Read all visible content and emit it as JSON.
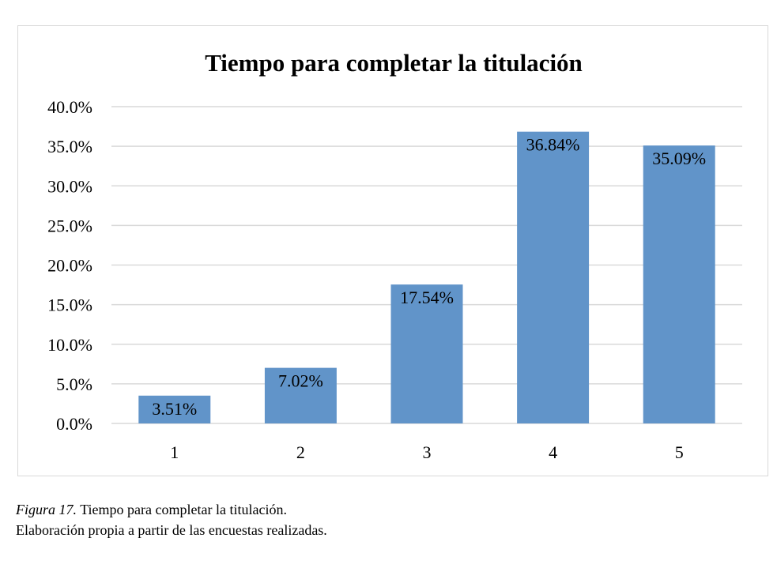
{
  "chart_data": {
    "type": "bar",
    "title": "Tiempo para completar la titulación",
    "xlabel": "",
    "ylabel": "",
    "categories": [
      "1",
      "2",
      "3",
      "4",
      "5"
    ],
    "values": [
      3.51,
      7.02,
      17.54,
      36.84,
      35.09
    ],
    "value_labels": [
      "3.51%",
      "7.02%",
      "17.54%",
      "36.84%",
      "35.09%"
    ],
    "ylim": [
      0,
      40
    ],
    "yticks": [
      0,
      5,
      10,
      15,
      20,
      25,
      30,
      35,
      40
    ],
    "ytick_labels": [
      "0.0%",
      "5.0%",
      "10.0%",
      "15.0%",
      "20.0%",
      "25.0%",
      "30.0%",
      "35.0%",
      "40.0%"
    ],
    "grid": true,
    "legend": "none",
    "bar_color": "#6194c9",
    "grid_color": "#d9d9d9"
  },
  "caption": {
    "figure_label": "Figura 17.",
    "figure_text": " Tiempo para completar la titulación.",
    "source_text": "Elaboración propia a partir de las encuestas realizadas."
  }
}
